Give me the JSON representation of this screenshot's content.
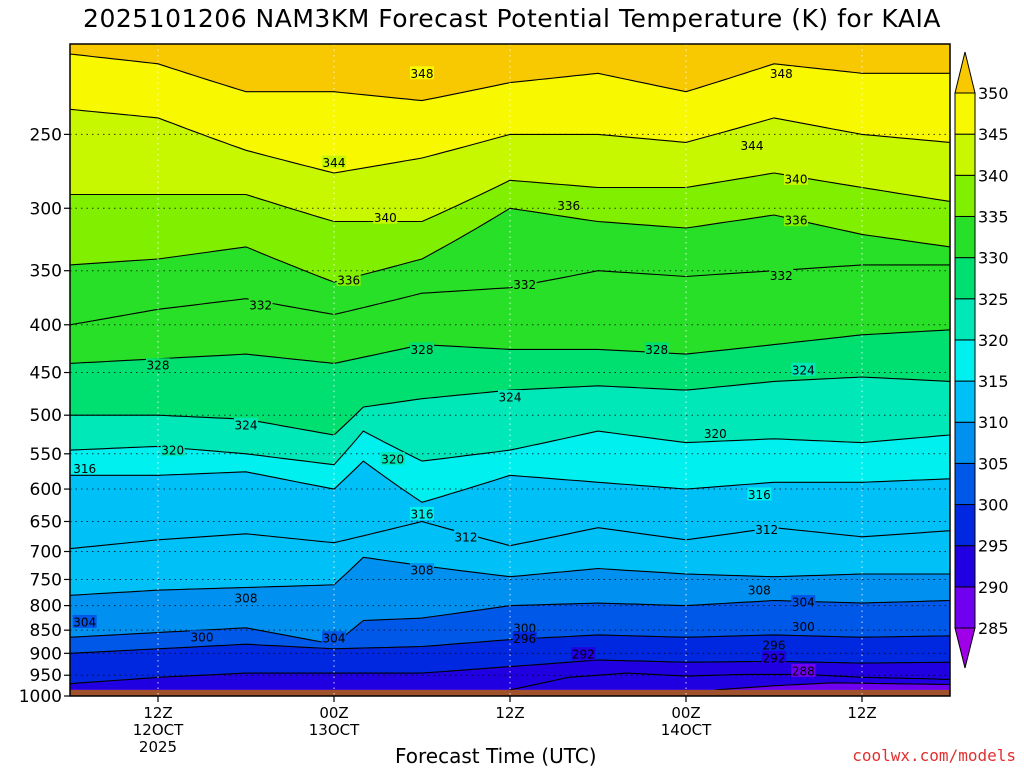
{
  "title": "2025101206 NAM3KM Forecast Potential Temperature (K) for KAIA",
  "xlabel": "Forecast Time (UTC)",
  "credit": "coolwx.com/models",
  "chart_data": {
    "type": "contour",
    "field": "Potential Temperature (K)",
    "x_axis": {
      "unit": "forecast hour",
      "range": [
        0,
        60
      ],
      "ticks": [
        {
          "hour": 6,
          "lines": [
            "12Z",
            "12OCT",
            "2025"
          ]
        },
        {
          "hour": 18,
          "lines": [
            "00Z",
            "13OCT"
          ]
        },
        {
          "hour": 30,
          "lines": [
            "12Z"
          ]
        },
        {
          "hour": 42,
          "lines": [
            "00Z",
            "14OCT"
          ]
        },
        {
          "hour": 54,
          "lines": [
            "12Z"
          ]
        }
      ]
    },
    "y_axis": {
      "unit": "hPa",
      "reversed": true,
      "log_scale": true,
      "range": [
        200,
        1000
      ],
      "ticks": [
        250,
        300,
        350,
        400,
        450,
        500,
        550,
        600,
        650,
        700,
        750,
        800,
        850,
        900,
        950,
        1000
      ]
    },
    "ground_level_hPa": 985,
    "ground_color": "#a0522d",
    "colorbar": {
      "levels": [
        285,
        290,
        295,
        300,
        305,
        310,
        315,
        320,
        325,
        330,
        335,
        340,
        345,
        350
      ],
      "colors": [
        "#a000e8",
        "#7000f0",
        "#2000e0",
        "#0028e0",
        "#0058e8",
        "#0090f0",
        "#00c0f8",
        "#00f0f0",
        "#00e8b8",
        "#00e070",
        "#28e028",
        "#80f000",
        "#c8f800",
        "#f8f800",
        "#f8c800"
      ]
    },
    "grid": true,
    "contour_interval": 4,
    "contour_line_samples": [
      {
        "theta": 288,
        "x": [
          44,
          48,
          52,
          56,
          60
        ],
        "p": [
          985,
          975,
          968,
          970,
          972
        ]
      },
      {
        "theta": 292,
        "x": [
          30,
          34,
          38,
          42,
          46,
          50,
          54,
          58,
          60
        ],
        "p": [
          985,
          955,
          945,
          952,
          948,
          948,
          955,
          958,
          960
        ]
      },
      {
        "theta": 296,
        "x": [
          0,
          6,
          12,
          18,
          24,
          30,
          36,
          42,
          48,
          54,
          60
        ],
        "p": [
          970,
          955,
          945,
          945,
          945,
          930,
          915,
          920,
          918,
          922,
          920
        ]
      },
      {
        "theta": 300,
        "x": [
          0,
          6,
          12,
          18,
          24,
          30,
          36,
          42,
          48,
          54,
          60
        ],
        "p": [
          900,
          890,
          880,
          890,
          885,
          870,
          860,
          865,
          860,
          865,
          862
        ]
      },
      {
        "theta": 304,
        "x": [
          0,
          6,
          12,
          18,
          20,
          24,
          30,
          36,
          42,
          48,
          54,
          60
        ],
        "p": [
          865,
          855,
          845,
          880,
          830,
          825,
          800,
          795,
          800,
          790,
          795,
          790
        ]
      },
      {
        "theta": 308,
        "x": [
          0,
          6,
          12,
          18,
          20,
          24,
          30,
          36,
          42,
          48,
          54,
          60
        ],
        "p": [
          780,
          770,
          765,
          760,
          710,
          725,
          745,
          730,
          740,
          745,
          740,
          740
        ]
      },
      {
        "theta": 312,
        "x": [
          0,
          6,
          12,
          18,
          24,
          30,
          36,
          42,
          48,
          54,
          60
        ],
        "p": [
          695,
          680,
          670,
          685,
          650,
          690,
          660,
          680,
          660,
          675,
          665
        ]
      },
      {
        "theta": 316,
        "x": [
          0,
          6,
          12,
          18,
          20,
          24,
          30,
          36,
          42,
          48,
          54,
          60
        ],
        "p": [
          580,
          580,
          575,
          600,
          560,
          620,
          580,
          590,
          600,
          590,
          590,
          585
        ]
      },
      {
        "theta": 320,
        "x": [
          0,
          6,
          12,
          18,
          20,
          24,
          30,
          36,
          42,
          48,
          54,
          60
        ],
        "p": [
          545,
          540,
          550,
          565,
          520,
          560,
          545,
          520,
          535,
          530,
          535,
          525
        ]
      },
      {
        "theta": 324,
        "x": [
          0,
          6,
          12,
          18,
          20,
          24,
          30,
          36,
          42,
          48,
          54,
          60
        ],
        "p": [
          500,
          500,
          505,
          525,
          490,
          480,
          470,
          465,
          470,
          460,
          455,
          460
        ]
      },
      {
        "theta": 328,
        "x": [
          0,
          6,
          12,
          18,
          24,
          30,
          36,
          42,
          48,
          54,
          60
        ],
        "p": [
          440,
          435,
          430,
          440,
          420,
          425,
          425,
          430,
          420,
          410,
          405
        ]
      },
      {
        "theta": 332,
        "x": [
          0,
          6,
          12,
          18,
          24,
          30,
          36,
          42,
          48,
          54,
          60
        ],
        "p": [
          400,
          385,
          375,
          390,
          370,
          365,
          350,
          355,
          350,
          345,
          345
        ]
      },
      {
        "theta": 336,
        "x": [
          0,
          6,
          12,
          18,
          24,
          30,
          36,
          42,
          48,
          54,
          60
        ],
        "p": [
          345,
          340,
          330,
          360,
          340,
          300,
          310,
          315,
          305,
          320,
          330
        ]
      },
      {
        "theta": 340,
        "x": [
          0,
          6,
          12,
          18,
          24,
          30,
          36,
          42,
          48,
          54,
          60
        ],
        "p": [
          290,
          290,
          290,
          310,
          310,
          280,
          285,
          285,
          275,
          285,
          295
        ]
      },
      {
        "theta": 344,
        "x": [
          0,
          6,
          12,
          18,
          24,
          30,
          36,
          42,
          48,
          54,
          60
        ],
        "p": [
          235,
          240,
          260,
          275,
          265,
          250,
          250,
          255,
          240,
          250,
          255
        ]
      },
      {
        "theta": 348,
        "x": [
          0,
          6,
          12,
          18,
          24,
          30,
          36,
          42,
          48,
          54,
          60
        ],
        "p": [
          205,
          210,
          225,
          225,
          230,
          220,
          215,
          225,
          210,
          215,
          215
        ]
      }
    ],
    "contour_labels": [
      {
        "text": "348",
        "x": 24,
        "p": 215
      },
      {
        "text": "348",
        "x": 48.5,
        "p": 215
      },
      {
        "text": "344",
        "x": 18,
        "p": 268
      },
      {
        "text": "344",
        "x": 46.5,
        "p": 257
      },
      {
        "text": "340",
        "x": 49.5,
        "p": 279
      },
      {
        "text": "340",
        "x": 21.5,
        "p": 307
      },
      {
        "text": "336",
        "x": 34,
        "p": 298
      },
      {
        "text": "336",
        "x": 49.5,
        "p": 309
      },
      {
        "text": "336",
        "x": 19,
        "p": 358
      },
      {
        "text": "332",
        "x": 48.5,
        "p": 354
      },
      {
        "text": "332",
        "x": 31,
        "p": 362
      },
      {
        "text": "332",
        "x": 13,
        "p": 381
      },
      {
        "text": "328",
        "x": 24,
        "p": 425
      },
      {
        "text": "328",
        "x": 40,
        "p": 425
      },
      {
        "text": "328",
        "x": 6,
        "p": 442
      },
      {
        "text": "324",
        "x": 50,
        "p": 447
      },
      {
        "text": "324",
        "x": 30,
        "p": 478
      },
      {
        "text": "324",
        "x": 12,
        "p": 512
      },
      {
        "text": "320",
        "x": 44,
        "p": 523
      },
      {
        "text": "320",
        "x": 7,
        "p": 545
      },
      {
        "text": "320",
        "x": 22,
        "p": 557
      },
      {
        "text": "316",
        "x": 1,
        "p": 570
      },
      {
        "text": "316",
        "x": 47,
        "p": 608
      },
      {
        "text": "316",
        "x": 24,
        "p": 638
      },
      {
        "text": "312",
        "x": 27,
        "p": 675
      },
      {
        "text": "312",
        "x": 47.5,
        "p": 663
      },
      {
        "text": "308",
        "x": 24,
        "p": 733
      },
      {
        "text": "308",
        "x": 47,
        "p": 770
      },
      {
        "text": "308",
        "x": 12,
        "p": 785
      },
      {
        "text": "304",
        "x": 50,
        "p": 793
      },
      {
        "text": "304",
        "x": 1,
        "p": 833
      },
      {
        "text": "304",
        "x": 18,
        "p": 867
      },
      {
        "text": "300",
        "x": 31,
        "p": 845
      },
      {
        "text": "300",
        "x": 50,
        "p": 842
      },
      {
        "text": "300",
        "x": 9,
        "p": 865
      },
      {
        "text": "296",
        "x": 31,
        "p": 868
      },
      {
        "text": "296",
        "x": 48,
        "p": 882
      },
      {
        "text": "292",
        "x": 35,
        "p": 902
      },
      {
        "text": "292",
        "x": 48,
        "p": 910
      },
      {
        "text": "288",
        "x": 50,
        "p": 940
      }
    ]
  }
}
